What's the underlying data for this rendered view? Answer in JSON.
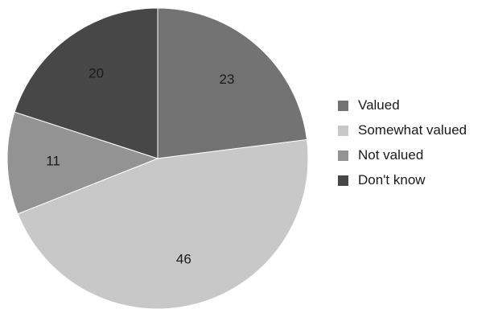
{
  "chart_data": {
    "type": "pie",
    "title": "",
    "categories": [
      "Valued",
      "Somewhat valued",
      "Not valued",
      "Don't know"
    ],
    "values": [
      23,
      46,
      11,
      20
    ],
    "data_labels": [
      "23",
      "46",
      "11",
      "20"
    ],
    "colors": [
      "#737373",
      "#c8c8c8",
      "#939393",
      "#474747"
    ],
    "start_angle_deg": 0,
    "direction": "clockwise",
    "legend": {
      "position": "right",
      "entries": [
        "Valued",
        "Somewhat valued",
        "Not valued",
        "Don't know"
      ]
    }
  }
}
